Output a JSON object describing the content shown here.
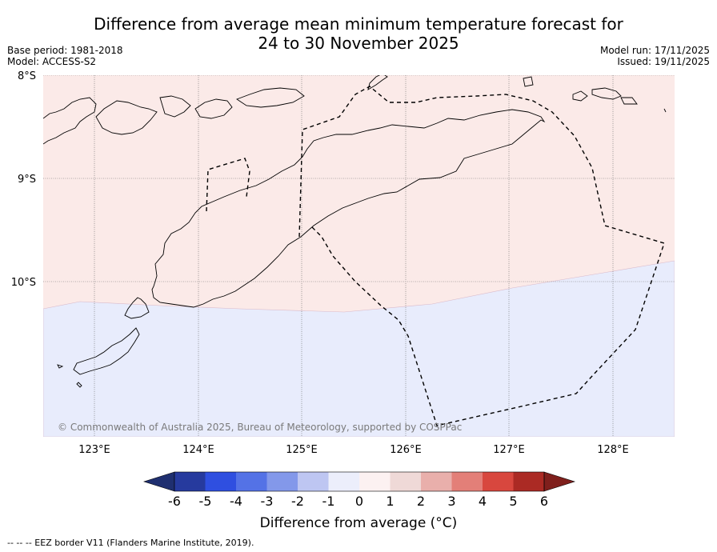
{
  "title": {
    "line1": "Difference from average mean minimum temperature forecast for",
    "line2": "24 to 30 November 2025"
  },
  "meta": {
    "base_period": "Base period: 1981-2018",
    "model": "Model: ACCESS-S2",
    "model_run": "Model run: 17/11/2025",
    "issued": "Issued: 19/11/2025"
  },
  "map": {
    "lat_labels": [
      "8°S",
      "9°S",
      "10°S"
    ],
    "lon_labels": [
      "123°E",
      "124°E",
      "125°E",
      "126°E",
      "127°E",
      "128°E"
    ],
    "copyright": "© Commonwealth of Australia 2025, Bureau of Meteorology, supported by COSPPac",
    "regions": [
      {
        "name": "0 to 1",
        "color": "#fbeae8"
      },
      {
        "name": "-1 to 0",
        "color": "#e8ecfc"
      }
    ]
  },
  "colorbar": {
    "ticks": [
      "-6",
      "-5",
      "-4",
      "-3",
      "-2",
      "-1",
      "0",
      "1",
      "2",
      "3",
      "4",
      "5",
      "6"
    ],
    "colors": [
      "#263a9e",
      "#2f4fe0",
      "#5472e6",
      "#8398ea",
      "#bec6f2",
      "#eceefb",
      "#fcf1f1",
      "#efd9d7",
      "#e9afab",
      "#e37f78",
      "#d8473e",
      "#ab2a24"
    ],
    "under_color": "#1f2f70",
    "over_color": "#7f1f1c",
    "label": "Difference from average (°C)"
  },
  "footer": "--  --  -- EEZ border V11 (Flanders Marine Institute, 2019)."
}
